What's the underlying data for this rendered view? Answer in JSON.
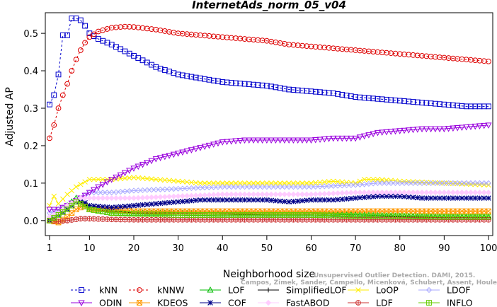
{
  "chart_data": {
    "type": "line",
    "title": "InternetAds_norm_05_v04",
    "xlabel": "Neighborhood size",
    "ylabel": "Adjusted AP",
    "xlim": [
      1,
      100
    ],
    "ylim": [
      -0.04,
      0.555
    ],
    "x_ticks": [
      1,
      10,
      20,
      30,
      40,
      50,
      60,
      70,
      80,
      90,
      100
    ],
    "y_ticks": [
      0.0,
      0.1,
      0.2,
      0.3,
      0.4,
      0.5
    ],
    "x_tick_labels": [
      "1",
      "10",
      "20",
      "30",
      "40",
      "50",
      "60",
      "70",
      "80",
      "90",
      "100"
    ],
    "y_tick_labels": [
      "0.0",
      "0.1",
      "0.2",
      "0.3",
      "0.4",
      "0.5"
    ],
    "grid": false,
    "legend_placement": "bottom",
    "watermark_lines": [
      "Unsupervised Outlier Detection. DAMI, 2015.",
      "Campos, Zimek, Sander, Campello, Micenková, Schubert, Assent, Houle"
    ],
    "series": [
      {
        "name": "kNN",
        "color": "#0000cc",
        "marker": "square",
        "dashed": true,
        "points": [
          [
            1,
            0.31
          ],
          [
            2,
            0.335
          ],
          [
            3,
            0.39
          ],
          [
            4,
            0.495
          ],
          [
            5,
            0.495
          ],
          [
            6,
            0.54
          ],
          [
            7,
            0.54
          ],
          [
            8,
            0.535
          ],
          [
            9,
            0.52
          ],
          [
            10,
            0.5
          ],
          [
            12,
            0.485
          ],
          [
            15,
            0.47
          ],
          [
            20,
            0.44
          ],
          [
            25,
            0.41
          ],
          [
            30,
            0.39
          ],
          [
            35,
            0.38
          ],
          [
            40,
            0.37
          ],
          [
            45,
            0.365
          ],
          [
            50,
            0.36
          ],
          [
            55,
            0.35
          ],
          [
            60,
            0.345
          ],
          [
            65,
            0.34
          ],
          [
            70,
            0.33
          ],
          [
            75,
            0.325
          ],
          [
            80,
            0.32
          ],
          [
            85,
            0.315
          ],
          [
            90,
            0.31
          ],
          [
            95,
            0.305
          ],
          [
            100,
            0.305
          ]
        ]
      },
      {
        "name": "kNNW",
        "color": "#dd0000",
        "marker": "circle",
        "dashed": true,
        "points": [
          [
            1,
            0.22
          ],
          [
            2,
            0.255
          ],
          [
            3,
            0.3
          ],
          [
            4,
            0.335
          ],
          [
            5,
            0.365
          ],
          [
            6,
            0.4
          ],
          [
            7,
            0.43
          ],
          [
            8,
            0.455
          ],
          [
            9,
            0.475
          ],
          [
            10,
            0.49
          ],
          [
            12,
            0.505
          ],
          [
            15,
            0.515
          ],
          [
            18,
            0.518
          ],
          [
            20,
            0.517
          ],
          [
            25,
            0.51
          ],
          [
            30,
            0.5
          ],
          [
            35,
            0.495
          ],
          [
            40,
            0.49
          ],
          [
            45,
            0.485
          ],
          [
            50,
            0.48
          ],
          [
            55,
            0.47
          ],
          [
            60,
            0.465
          ],
          [
            65,
            0.46
          ],
          [
            70,
            0.455
          ],
          [
            75,
            0.45
          ],
          [
            80,
            0.445
          ],
          [
            85,
            0.44
          ],
          [
            90,
            0.435
          ],
          [
            95,
            0.43
          ],
          [
            100,
            0.425
          ]
        ]
      },
      {
        "name": "LOF",
        "color": "#00bb00",
        "marker": "triangle-up",
        "dashed": false,
        "points": [
          [
            1,
            0.0
          ],
          [
            3,
            0.02
          ],
          [
            5,
            0.04
          ],
          [
            7,
            0.06
          ],
          [
            8,
            0.055
          ],
          [
            10,
            0.03
          ],
          [
            15,
            0.02
          ],
          [
            20,
            0.02
          ],
          [
            30,
            0.02
          ],
          [
            40,
            0.018
          ],
          [
            50,
            0.018
          ],
          [
            60,
            0.018
          ],
          [
            70,
            0.015
          ],
          [
            80,
            0.012
          ],
          [
            90,
            0.01
          ],
          [
            100,
            0.01
          ]
        ]
      },
      {
        "name": "SimplifiedLOF",
        "color": "#000000",
        "marker": "plus",
        "dashed": false,
        "points": [
          [
            1,
            0.0
          ],
          [
            3,
            0.02
          ],
          [
            5,
            0.04
          ],
          [
            7,
            0.055
          ],
          [
            8,
            0.05
          ],
          [
            10,
            0.03
          ],
          [
            15,
            0.025
          ],
          [
            20,
            0.02
          ],
          [
            30,
            0.02
          ],
          [
            40,
            0.018
          ],
          [
            50,
            0.015
          ],
          [
            60,
            0.015
          ],
          [
            70,
            0.012
          ],
          [
            80,
            0.01
          ],
          [
            90,
            0.008
          ],
          [
            100,
            0.008
          ]
        ]
      },
      {
        "name": "LoOP",
        "color": "#ffee00",
        "marker": "x",
        "dashed": false,
        "points": [
          [
            1,
            0.04
          ],
          [
            2,
            0.065
          ],
          [
            3,
            0.045
          ],
          [
            5,
            0.07
          ],
          [
            7,
            0.09
          ],
          [
            10,
            0.11
          ],
          [
            15,
            0.11
          ],
          [
            20,
            0.115
          ],
          [
            25,
            0.11
          ],
          [
            30,
            0.105
          ],
          [
            35,
            0.1
          ],
          [
            40,
            0.1
          ],
          [
            50,
            0.1
          ],
          [
            60,
            0.1
          ],
          [
            65,
            0.105
          ],
          [
            70,
            0.1
          ],
          [
            72,
            0.11
          ],
          [
            75,
            0.11
          ],
          [
            80,
            0.105
          ],
          [
            90,
            0.1
          ],
          [
            100,
            0.095
          ]
        ]
      },
      {
        "name": "LDOF",
        "color": "#aaaaff",
        "marker": "diamond",
        "dashed": false,
        "points": [
          [
            1,
            0.02
          ],
          [
            3,
            0.03
          ],
          [
            5,
            0.04
          ],
          [
            8,
            0.06
          ],
          [
            10,
            0.075
          ],
          [
            15,
            0.075
          ],
          [
            20,
            0.08
          ],
          [
            30,
            0.085
          ],
          [
            40,
            0.09
          ],
          [
            50,
            0.09
          ],
          [
            60,
            0.09
          ],
          [
            70,
            0.095
          ],
          [
            75,
            0.1
          ],
          [
            80,
            0.1
          ],
          [
            90,
            0.1
          ],
          [
            100,
            0.1
          ]
        ]
      },
      {
        "name": "ODIN",
        "color": "#9900dd",
        "marker": "triangle-down",
        "dashed": false,
        "points": [
          [
            1,
            0.03
          ],
          [
            3,
            0.03
          ],
          [
            5,
            0.04
          ],
          [
            8,
            0.06
          ],
          [
            10,
            0.075
          ],
          [
            12,
            0.09
          ],
          [
            15,
            0.11
          ],
          [
            20,
            0.14
          ],
          [
            25,
            0.165
          ],
          [
            30,
            0.18
          ],
          [
            35,
            0.195
          ],
          [
            40,
            0.21
          ],
          [
            45,
            0.215
          ],
          [
            50,
            0.215
          ],
          [
            55,
            0.215
          ],
          [
            60,
            0.215
          ],
          [
            65,
            0.22
          ],
          [
            70,
            0.22
          ],
          [
            75,
            0.235
          ],
          [
            80,
            0.24
          ],
          [
            85,
            0.245
          ],
          [
            90,
            0.245
          ],
          [
            95,
            0.25
          ],
          [
            100,
            0.255
          ]
        ]
      },
      {
        "name": "KDEOS",
        "color": "#ff9900",
        "marker": "square-x",
        "dashed": false,
        "points": [
          [
            1,
            0.0
          ],
          [
            3,
            -0.005
          ],
          [
            5,
            0.01
          ],
          [
            7,
            0.03
          ],
          [
            9,
            0.04
          ],
          [
            10,
            0.03
          ],
          [
            15,
            0.03
          ],
          [
            20,
            0.025
          ],
          [
            30,
            0.025
          ],
          [
            40,
            0.025
          ],
          [
            50,
            0.025
          ],
          [
            60,
            0.025
          ],
          [
            70,
            0.025
          ],
          [
            80,
            0.025
          ],
          [
            90,
            0.025
          ],
          [
            100,
            0.025
          ]
        ]
      },
      {
        "name": "COF",
        "color": "#000088",
        "marker": "star",
        "dashed": false,
        "points": [
          [
            1,
            0.0
          ],
          [
            3,
            0.015
          ],
          [
            5,
            0.03
          ],
          [
            7,
            0.05
          ],
          [
            8,
            0.055
          ],
          [
            10,
            0.04
          ],
          [
            15,
            0.035
          ],
          [
            20,
            0.04
          ],
          [
            25,
            0.045
          ],
          [
            30,
            0.05
          ],
          [
            35,
            0.055
          ],
          [
            40,
            0.055
          ],
          [
            45,
            0.055
          ],
          [
            50,
            0.055
          ],
          [
            55,
            0.05
          ],
          [
            60,
            0.055
          ],
          [
            65,
            0.055
          ],
          [
            70,
            0.06
          ],
          [
            75,
            0.065
          ],
          [
            80,
            0.065
          ],
          [
            85,
            0.06
          ],
          [
            90,
            0.06
          ],
          [
            95,
            0.06
          ],
          [
            100,
            0.06
          ]
        ]
      },
      {
        "name": "FastABOD",
        "color": "#ffccff",
        "marker": "diamond-filled",
        "dashed": false,
        "points": [
          [
            1,
            0.01
          ],
          [
            3,
            0.02
          ],
          [
            5,
            0.04
          ],
          [
            8,
            0.06
          ],
          [
            10,
            0.06
          ],
          [
            15,
            0.06
          ],
          [
            20,
            0.06
          ],
          [
            30,
            0.065
          ],
          [
            40,
            0.07
          ],
          [
            50,
            0.07
          ],
          [
            60,
            0.07
          ],
          [
            70,
            0.075
          ],
          [
            80,
            0.075
          ],
          [
            90,
            0.075
          ],
          [
            100,
            0.075
          ]
        ]
      },
      {
        "name": "LDF",
        "color": "#cc3333",
        "marker": "circle-plus",
        "dashed": false,
        "points": [
          [
            1,
            0.0
          ],
          [
            3,
            -0.002
          ],
          [
            5,
            0.0
          ],
          [
            8,
            0.005
          ],
          [
            10,
            0.005
          ],
          [
            15,
            0.003
          ],
          [
            20,
            0.002
          ],
          [
            30,
            0.002
          ],
          [
            40,
            0.002
          ],
          [
            50,
            0.002
          ],
          [
            60,
            0.002
          ],
          [
            70,
            0.002
          ],
          [
            80,
            0.002
          ],
          [
            90,
            0.002
          ],
          [
            100,
            0.002
          ]
        ]
      },
      {
        "name": "INFLO",
        "color": "#66cc00",
        "marker": "square-cross",
        "dashed": false,
        "points": [
          [
            1,
            0.0
          ],
          [
            3,
            0.015
          ],
          [
            5,
            0.03
          ],
          [
            7,
            0.05
          ],
          [
            8,
            0.045
          ],
          [
            10,
            0.03
          ],
          [
            15,
            0.02
          ],
          [
            20,
            0.018
          ],
          [
            30,
            0.015
          ],
          [
            40,
            0.015
          ],
          [
            50,
            0.015
          ],
          [
            60,
            0.015
          ],
          [
            70,
            0.012
          ],
          [
            80,
            0.012
          ],
          [
            90,
            0.01
          ],
          [
            100,
            0.01
          ]
        ]
      }
    ]
  }
}
